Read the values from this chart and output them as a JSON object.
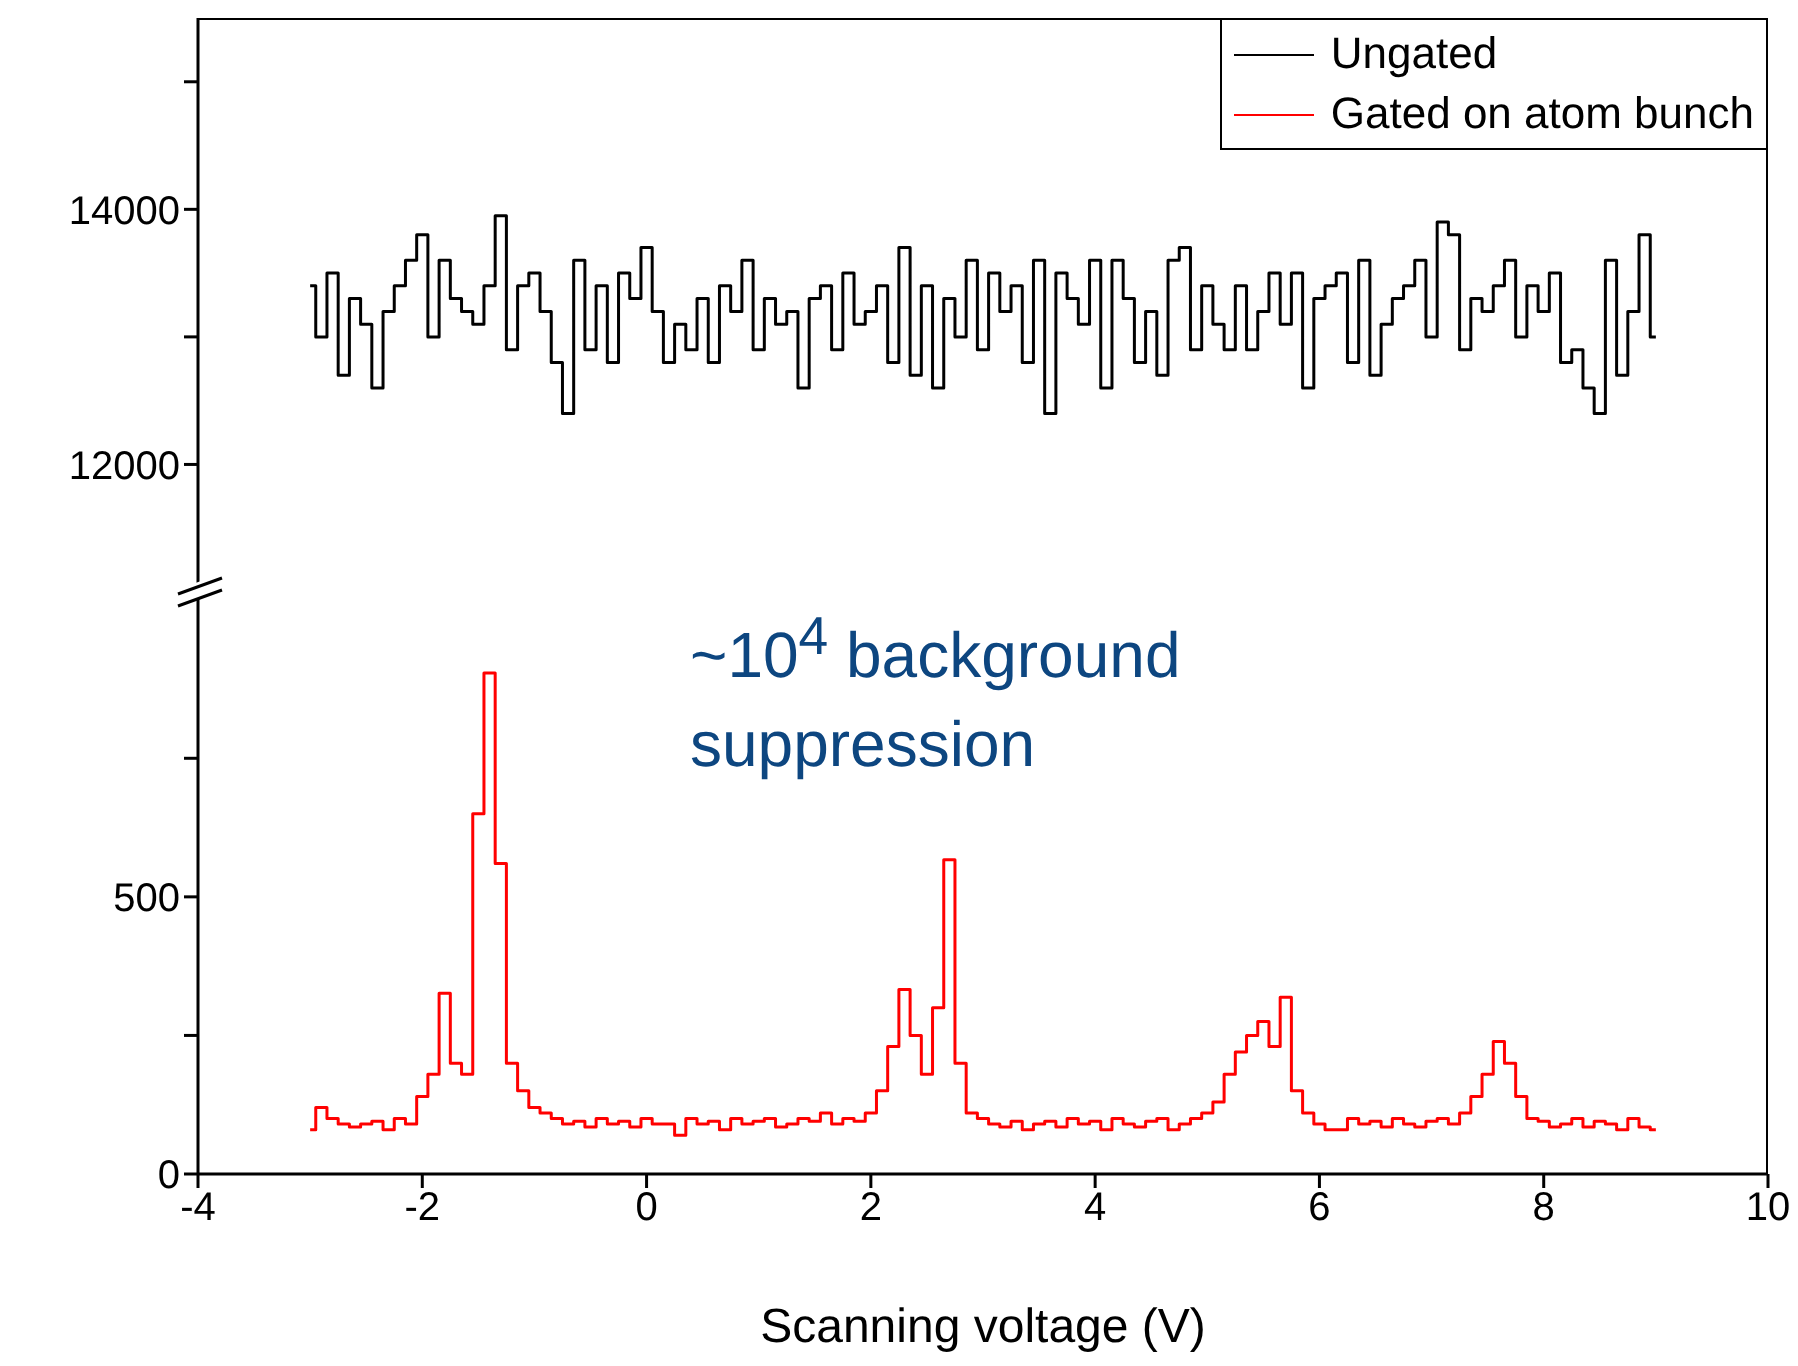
{
  "chart_data": [
    {
      "type": "step",
      "legend": "top right",
      "tick_labels": "y",
      "xlim": [
        -4,
        10
      ],
      "ylim": [
        11000,
        15500
      ],
      "yticks": [
        {
          "value": 11000,
          "label": null
        },
        12000,
        {
          "value": 13000,
          "label": null
        },
        14000,
        {
          "value": 15000,
          "label": null
        }
      ],
      "x": [
        -3.0,
        -2.9,
        -2.8,
        -2.7,
        -2.6,
        -2.5,
        -2.4,
        -2.3,
        -2.2,
        -2.1,
        -2.0,
        -1.9,
        -1.8,
        -1.7,
        -1.6,
        -1.5,
        -1.4,
        -1.3,
        -1.2,
        -1.1,
        -1.0,
        -0.9,
        -0.8,
        -0.7,
        -0.6,
        -0.5,
        -0.4,
        -0.3,
        -0.2,
        -0.1,
        0.0,
        0.1,
        0.2,
        0.3,
        0.4,
        0.5,
        0.6,
        0.7,
        0.8,
        0.9,
        1.0,
        1.1,
        1.2,
        1.3,
        1.4,
        1.5,
        1.6,
        1.7,
        1.8,
        1.9,
        2.0,
        2.1,
        2.2,
        2.3,
        2.4,
        2.5,
        2.6,
        2.7,
        2.8,
        2.9,
        3.0,
        3.1,
        3.2,
        3.3,
        3.4,
        3.5,
        3.6,
        3.7,
        3.8,
        3.9,
        4.0,
        4.1,
        4.2,
        4.3,
        4.4,
        4.5,
        4.6,
        4.7,
        4.8,
        4.9,
        5.0,
        5.1,
        5.2,
        5.3,
        5.4,
        5.5,
        5.6,
        5.7,
        5.8,
        5.9,
        6.0,
        6.1,
        6.2,
        6.3,
        6.4,
        6.5,
        6.6,
        6.7,
        6.8,
        6.9,
        7.0,
        7.1,
        7.2,
        7.3,
        7.4,
        7.5,
        7.6,
        7.7,
        7.8,
        7.9,
        8.0,
        8.1,
        8.2,
        8.3,
        8.4,
        8.5,
        8.6,
        8.7,
        8.8,
        8.9,
        9.0
      ],
      "series": [
        {
          "name": "Ungated",
          "color": "#000000",
          "values": [
            13400,
            13000,
            13500,
            12700,
            13300,
            13100,
            12600,
            13200,
            13400,
            13600,
            13800,
            13000,
            13600,
            13300,
            13200,
            13100,
            13400,
            13950,
            12900,
            13400,
            13500,
            13200,
            12800,
            12400,
            13600,
            12900,
            13400,
            12800,
            13500,
            13300,
            13700,
            13200,
            12800,
            13100,
            12900,
            13300,
            12800,
            13400,
            13200,
            13600,
            12900,
            13300,
            13100,
            13200,
            12600,
            13300,
            13400,
            12900,
            13500,
            13100,
            13200,
            13400,
            12800,
            13700,
            12700,
            13400,
            12600,
            13300,
            13000,
            13600,
            12900,
            13500,
            13200,
            13400,
            12800,
            13600,
            12400,
            13500,
            13300,
            13100,
            13600,
            12600,
            13600,
            13300,
            12800,
            13200,
            12700,
            13600,
            13700,
            12900,
            13400,
            13100,
            12900,
            13400,
            12900,
            13200,
            13500,
            13100,
            13500,
            12600,
            13300,
            13400,
            13500,
            12800,
            13600,
            12700,
            13100,
            13300,
            13400,
            13600,
            13000,
            13900,
            13800,
            12900,
            13300,
            13200,
            13400,
            13600,
            13000,
            13400,
            13200,
            13500,
            12800,
            12900,
            12600,
            12400,
            13600,
            12700,
            13200,
            13800,
            13000
          ]
        }
      ]
    },
    {
      "type": "step",
      "legend": "top right",
      "xlim": [
        -4,
        10
      ],
      "xticks": [
        -4,
        -2,
        0,
        2,
        4,
        6,
        8,
        10
      ],
      "ylim": [
        0,
        1050
      ],
      "yticks": [
        0,
        {
          "value": 250,
          "label": null
        },
        500,
        {
          "value": 750,
          "label": null
        }
      ],
      "xlabel": "Scanning voltage (V)",
      "annotations": [
        "~10$^{4}$ background suppression"
      ],
      "x": [
        -3.0,
        -2.9,
        -2.8,
        -2.7,
        -2.6,
        -2.5,
        -2.4,
        -2.3,
        -2.2,
        -2.1,
        -2.0,
        -1.9,
        -1.8,
        -1.7,
        -1.6,
        -1.5,
        -1.4,
        -1.3,
        -1.2,
        -1.1,
        -1.0,
        -0.9,
        -0.8,
        -0.7,
        -0.6,
        -0.5,
        -0.4,
        -0.3,
        -0.2,
        -0.1,
        0.0,
        0.1,
        0.2,
        0.3,
        0.4,
        0.5,
        0.6,
        0.7,
        0.8,
        0.9,
        1.0,
        1.1,
        1.2,
        1.3,
        1.4,
        1.5,
        1.6,
        1.7,
        1.8,
        1.9,
        2.0,
        2.1,
        2.2,
        2.3,
        2.4,
        2.5,
        2.6,
        2.7,
        2.8,
        2.9,
        3.0,
        3.1,
        3.2,
        3.3,
        3.4,
        3.5,
        3.6,
        3.7,
        3.8,
        3.9,
        4.0,
        4.1,
        4.2,
        4.3,
        4.4,
        4.5,
        4.6,
        4.7,
        4.8,
        4.9,
        5.0,
        5.1,
        5.2,
        5.3,
        5.4,
        5.5,
        5.6,
        5.7,
        5.8,
        5.9,
        6.0,
        6.1,
        6.2,
        6.3,
        6.4,
        6.5,
        6.6,
        6.7,
        6.8,
        6.9,
        7.0,
        7.1,
        7.2,
        7.3,
        7.4,
        7.5,
        7.6,
        7.7,
        7.8,
        7.9,
        8.0,
        8.1,
        8.2,
        8.3,
        8.4,
        8.5,
        8.6,
        8.7,
        8.8,
        8.9,
        9.0
      ],
      "series": [
        {
          "name": "Gated on atom bunch",
          "color": "#ff0000",
          "values": [
            80,
            120,
            100,
            90,
            85,
            90,
            95,
            80,
            100,
            90,
            140,
            180,
            326,
            200,
            180,
            650,
            904,
            560,
            200,
            150,
            120,
            110,
            100,
            90,
            95,
            85,
            100,
            90,
            95,
            85,
            100,
            90,
            90,
            70,
            100,
            90,
            95,
            80,
            100,
            90,
            95,
            100,
            85,
            90,
            100,
            95,
            110,
            90,
            100,
            95,
            110,
            150,
            230,
            333,
            250,
            180,
            300,
            567,
            200,
            110,
            100,
            90,
            85,
            95,
            80,
            90,
            95,
            85,
            100,
            90,
            95,
            80,
            100,
            90,
            85,
            95,
            100,
            80,
            90,
            100,
            110,
            130,
            180,
            220,
            250,
            275,
            230,
            319,
            150,
            110,
            90,
            80,
            80,
            100,
            90,
            95,
            85,
            100,
            90,
            85,
            95,
            100,
            90,
            110,
            140,
            180,
            239,
            200,
            140,
            100,
            95,
            85,
            90,
            100,
            85,
            95,
            90,
            80,
            100,
            85,
            80
          ]
        }
      ]
    }
  ]
}
